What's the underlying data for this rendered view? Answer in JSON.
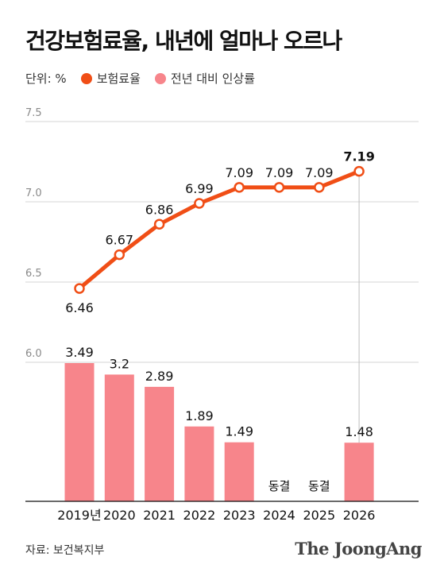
{
  "title": "건강보험료율, 내년에 얼마나 오르나",
  "legend": {
    "unit": "단위: %",
    "rate_label": "보험료율",
    "increase_label": "전년 대비 인상률"
  },
  "colors": {
    "rate_line": "#f04e16",
    "increase_bar": "#f7858b",
    "grid": "#d6d6d6",
    "axis_label": "#8a8a8a"
  },
  "source": "자료: 보건복지부",
  "brand": "The JoongAng",
  "chart_data": {
    "type": "bar+line",
    "categories": [
      "2019년",
      "2020",
      "2021",
      "2022",
      "2023",
      "2024",
      "2025",
      "2026"
    ],
    "rate": {
      "name": "보험료율",
      "values": [
        6.46,
        6.67,
        6.86,
        6.99,
        7.09,
        7.09,
        7.09,
        7.19
      ],
      "labels": [
        "6.46",
        "6.67",
        "6.86",
        "6.99",
        "7.09",
        "7.09",
        "7.09",
        "7.19"
      ],
      "yticks": [
        "6.0",
        "6.5",
        "7.0",
        "7.5"
      ],
      "ylim": [
        6.0,
        7.5
      ]
    },
    "increase": {
      "name": "전년 대비 인상률",
      "values": [
        3.49,
        3.2,
        2.89,
        1.89,
        1.49,
        0,
        0,
        1.48
      ],
      "labels": [
        "3.49",
        "3.2",
        "2.89",
        "1.89",
        "1.49",
        "동결",
        "동결",
        "1.48"
      ],
      "ylim": [
        0,
        4
      ]
    },
    "grid": true,
    "highlight_category": "2026"
  }
}
